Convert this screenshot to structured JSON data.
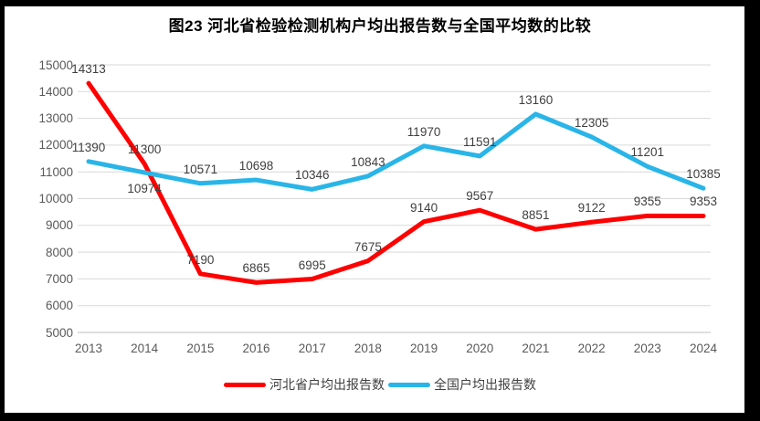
{
  "title": "图23  河北省检验检测机构户均出报告数与全国平均数的比较",
  "colors": {
    "frame": "#000000",
    "background": "#ffffff",
    "grid_line": "#d9d9d9",
    "axis_line": "#bfbfbf",
    "tick_label": "#595959",
    "data_label": "#3f3f3f",
    "title": "#000000"
  },
  "chart_data": {
    "type": "line",
    "title": "图23  河北省检验检测机构户均出报告数与全国平均数的比较",
    "x": [
      "2013",
      "2014",
      "2015",
      "2016",
      "2017",
      "2018",
      "2019",
      "2020",
      "2021",
      "2022",
      "2023",
      "2024"
    ],
    "series": [
      {
        "name": "河北省户均出报告数",
        "color": "#fe0000",
        "values": [
          14313,
          11300,
          7190,
          6865,
          6995,
          7675,
          9140,
          9567,
          8851,
          9122,
          9355,
          9353
        ]
      },
      {
        "name": "全国户均出报告数",
        "color": "#29b5e8",
        "values": [
          11390,
          10974,
          10571,
          10698,
          10346,
          10843,
          11970,
          11591,
          13160,
          12305,
          11201,
          10385
        ]
      }
    ],
    "xlabel": "",
    "ylabel": "",
    "ylim": [
      5000,
      15000
    ],
    "ytick_step": 1000,
    "grid": true,
    "legend_position": "bottom",
    "data_labels": true
  }
}
